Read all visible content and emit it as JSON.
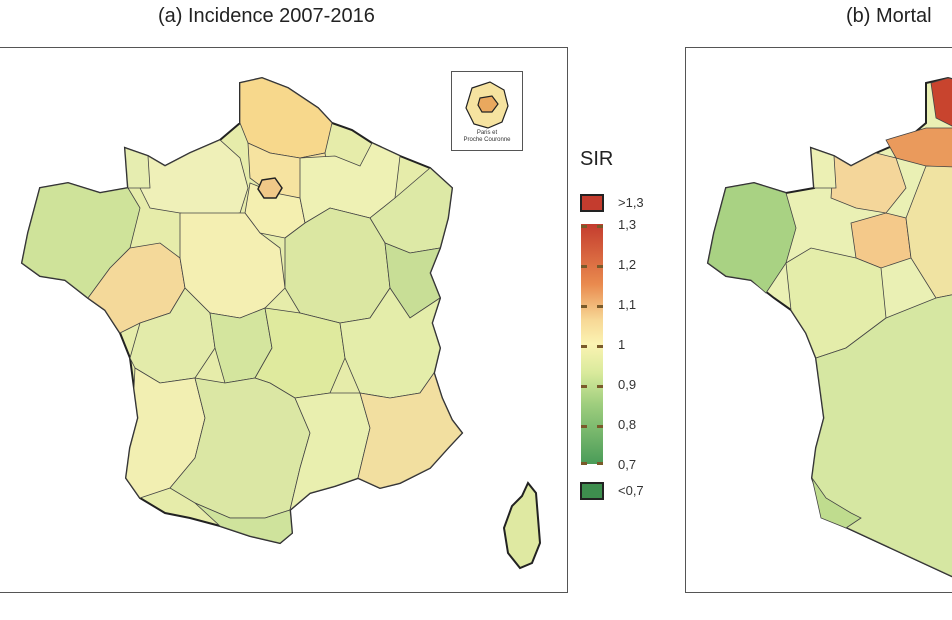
{
  "panels": [
    {
      "title": "(a) Incidence 2007-2016"
    },
    {
      "title": "(b) Mortal"
    }
  ],
  "inset": {
    "label_line1": "Paris et",
    "label_line2": "Proche Couronne"
  },
  "legend": {
    "title": "SIR",
    "above_label": ">1,3",
    "below_label": "<0,7",
    "ticks": [
      "1,3",
      "1,2",
      "1,1",
      "1",
      "0,9",
      "0,8",
      "0,7"
    ],
    "colors": {
      "high": "#c43c2e",
      "mid": "#fbf3b2",
      "low": "#3e8e4e"
    }
  }
}
